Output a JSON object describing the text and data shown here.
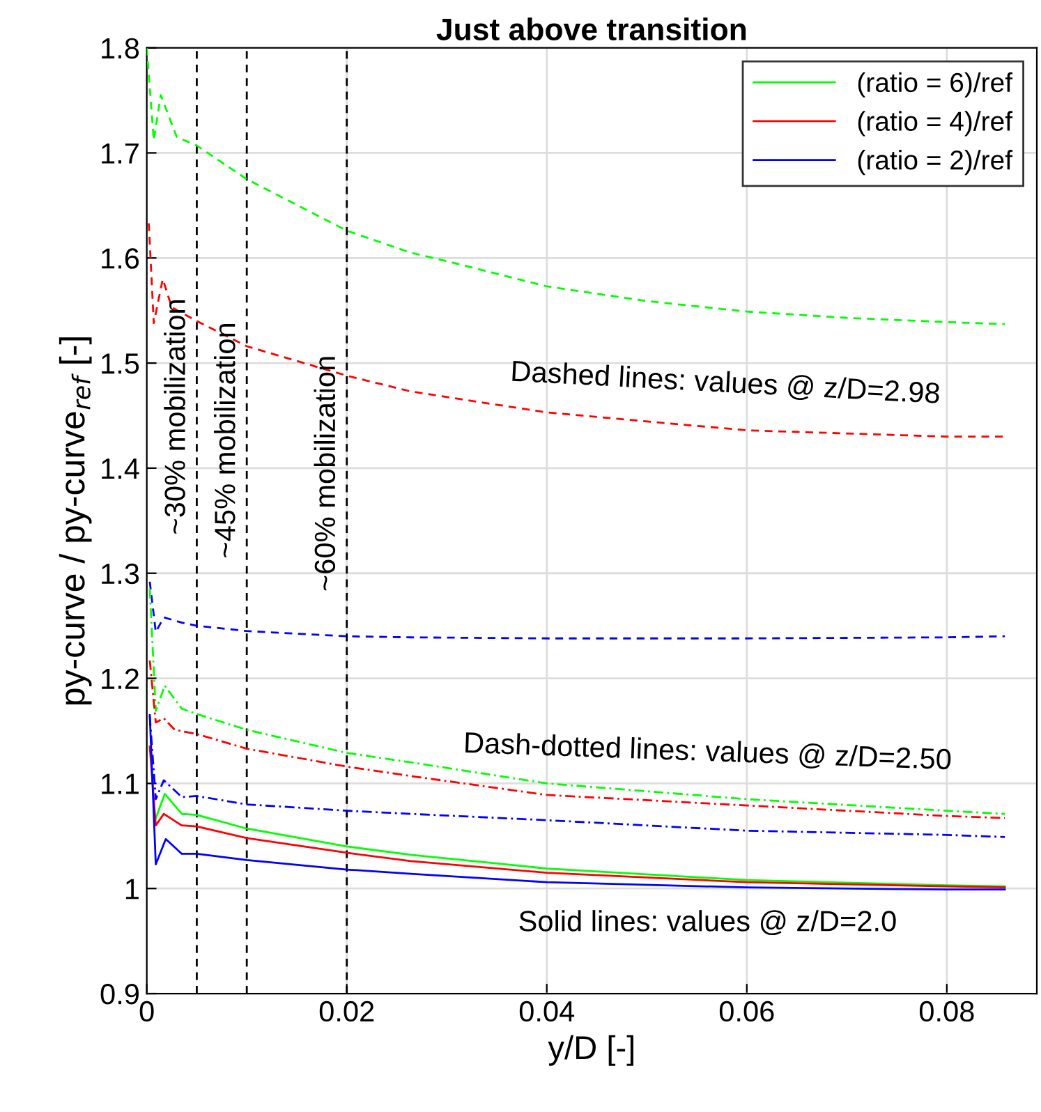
{
  "chart_data": {
    "type": "line",
    "title": "Just above transition",
    "xlabel": "y/D [-]",
    "ylabel": "py-curve / py-curve$_{ref}$ [-]",
    "xlim": [
      0,
      0.089
    ],
    "ylim": [
      0.9,
      1.8
    ],
    "xticks": [
      0,
      0.02,
      0.04,
      0.06,
      0.08
    ],
    "yticks": [
      0.9,
      1,
      1.1,
      1.2,
      1.3,
      1.4,
      1.5,
      1.6,
      1.7,
      1.8
    ],
    "grid": true,
    "legend": "top right",
    "series": [
      {
        "name": "(ratio = 6)/ref",
        "color": "#00ff00",
        "line_style": "solid",
        "x": [
          0.0009,
          0.0018,
          0.0035,
          0.005,
          0.01,
          0.02,
          0.0264,
          0.04,
          0.06,
          0.08,
          0.0858
        ],
        "values": [
          1.067,
          1.09,
          1.071,
          1.07,
          1.057,
          1.04,
          1.032,
          1.019,
          1.008,
          1.003,
          1.002
        ]
      },
      {
        "name": "(ratio = 4)/ref",
        "color": "#ff0000",
        "line_style": "solid",
        "x": [
          0.0003,
          0.0009,
          0.0017,
          0.0035,
          0.005,
          0.01,
          0.02,
          0.0264,
          0.04,
          0.06,
          0.08,
          0.0858
        ],
        "values": [
          1.135,
          1.06,
          1.071,
          1.06,
          1.059,
          1.048,
          1.034,
          1.026,
          1.015,
          1.006,
          1.002,
          1.001
        ]
      },
      {
        "name": "(ratio = 2)/ref",
        "color": "#0000ff",
        "line_style": "solid",
        "x": [
          0.0003,
          0.0009,
          0.0019,
          0.0035,
          0.005,
          0.01,
          0.02,
          0.0264,
          0.04,
          0.06,
          0.08,
          0.0858
        ],
        "values": [
          1.165,
          1.023,
          1.047,
          1.033,
          1.033,
          1.027,
          1.018,
          1.014,
          1.006,
          1.001,
          0.999,
          0.999
        ]
      },
      {
        "color": "#00ff00",
        "line_style": "dashed",
        "x": [
          0,
          0.0007,
          0.0014,
          0.003,
          0.005,
          0.01,
          0.02,
          0.0264,
          0.03,
          0.04,
          0.05,
          0.06,
          0.07,
          0.08,
          0.0858
        ],
        "values": [
          1.8,
          1.712,
          1.755,
          1.715,
          1.707,
          1.675,
          1.626,
          1.605,
          1.597,
          1.573,
          1.559,
          1.549,
          1.543,
          1.539,
          1.537
        ]
      },
      {
        "color": "#ff0000",
        "line_style": "dashed",
        "x": [
          0.0002,
          0.0007,
          0.0016,
          0.0025,
          0.005,
          0.01,
          0.02,
          0.0264,
          0.04,
          0.06,
          0.08,
          0.0858
        ],
        "values": [
          1.633,
          1.538,
          1.58,
          1.553,
          1.54,
          1.516,
          1.488,
          1.473,
          1.453,
          1.436,
          1.43,
          1.43
        ]
      },
      {
        "color": "#0000ff",
        "line_style": "dashed",
        "x": [
          0.0003,
          0.0009,
          0.0017,
          0.0035,
          0.005,
          0.01,
          0.02,
          0.0264,
          0.04,
          0.06,
          0.08,
          0.0858
        ],
        "values": [
          1.292,
          1.244,
          1.258,
          1.253,
          1.25,
          1.245,
          1.24,
          1.239,
          1.238,
          1.238,
          1.239,
          1.24
        ]
      },
      {
        "color": "#00ff00",
        "line_style": "dashdot",
        "x": [
          0.0003,
          0.0009,
          0.0018,
          0.0035,
          0.005,
          0.01,
          0.02,
          0.0264,
          0.04,
          0.06,
          0.08,
          0.0858
        ],
        "values": [
          1.285,
          1.169,
          1.193,
          1.171,
          1.166,
          1.151,
          1.129,
          1.12,
          1.1,
          1.085,
          1.074,
          1.071
        ]
      },
      {
        "color": "#ff0000",
        "line_style": "dashdot",
        "x": [
          0.0003,
          0.0009,
          0.0017,
          0.0028,
          0.005,
          0.01,
          0.02,
          0.0264,
          0.04,
          0.06,
          0.08,
          0.0858
        ],
        "values": [
          1.217,
          1.158,
          1.162,
          1.151,
          1.147,
          1.133,
          1.116,
          1.107,
          1.089,
          1.079,
          1.069,
          1.067
        ]
      },
      {
        "color": "#0000ff",
        "line_style": "dashdot",
        "x": [
          0.0003,
          0.0009,
          0.0017,
          0.0035,
          0.005,
          0.01,
          0.02,
          0.0264,
          0.04,
          0.06,
          0.08,
          0.0858
        ],
        "values": [
          1.164,
          1.085,
          1.103,
          1.087,
          1.088,
          1.08,
          1.074,
          1.071,
          1.065,
          1.055,
          1.051,
          1.049
        ]
      }
    ],
    "ref_lines": [
      {
        "axis": "x",
        "value": 0.005,
        "label": "~30% mobilization",
        "color": "#000000",
        "line_style": "dashed"
      },
      {
        "axis": "x",
        "value": 0.01,
        "label": "~45% mobilization",
        "color": "#000000",
        "line_style": "dashed"
      },
      {
        "axis": "x",
        "value": 0.02,
        "label": "~60% mobilization",
        "color": "#000000",
        "line_style": "dashed"
      }
    ],
    "annotations": [
      "Dashed lines: values @ z/D=2.98",
      "Dash-dotted lines: values @ z/D=2.50",
      "Solid lines: values @ z/D=2.0"
    ]
  }
}
